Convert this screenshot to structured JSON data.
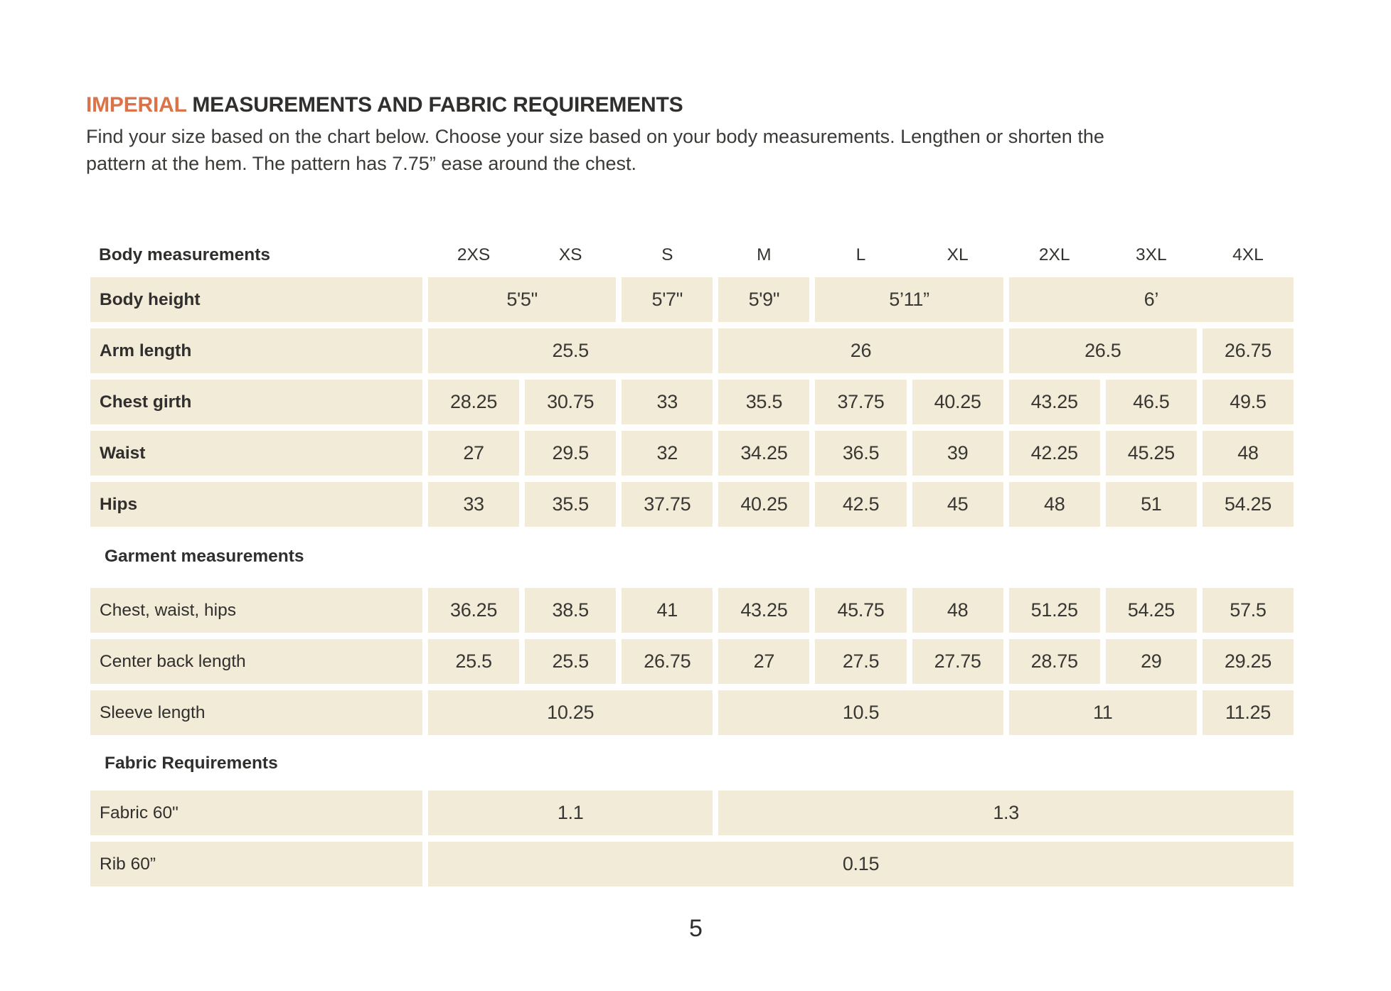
{
  "page": {
    "title_highlight": "IMPERIAL",
    "title_rest": " MEASUREMENTS AND FABRIC REQUIREMENTS",
    "intro_line1": "Find your size based on the chart below. Choose your size based on your body measurements. Lengthen or shorten the",
    "intro_line2": "pattern at the hem. The pattern has 7.75” ease around the chest.",
    "page_number": "5",
    "accent_color": "#DC7348",
    "cell_color": "#F2EBD8"
  },
  "table": {
    "corner_header": "Body measurements",
    "sizes": [
      "2XS",
      "XS",
      "S",
      "M",
      "L",
      "XL",
      "2XL",
      "3XL",
      "4XL"
    ],
    "sections": [
      {
        "heading": null,
        "bold_labels": true,
        "rows": [
          {
            "label": "Body height",
            "cells": [
              [
                "5'5\"",
                2
              ],
              [
                "5'7\"",
                1
              ],
              [
                "5'9\"",
                1
              ],
              [
                "5’11”",
                2
              ],
              [
                "6’",
                3
              ]
            ]
          },
          {
            "label": "Arm length",
            "cells": [
              [
                "25.5",
                3
              ],
              [
                "26",
                3
              ],
              [
                "26.5",
                2
              ],
              [
                "26.75",
                1
              ]
            ]
          },
          {
            "label": "Chest girth",
            "cells": [
              [
                "28.25",
                1
              ],
              [
                "30.75",
                1
              ],
              [
                "33",
                1
              ],
              [
                "35.5",
                1
              ],
              [
                "37.75",
                1
              ],
              [
                "40.25",
                1
              ],
              [
                "43.25",
                1
              ],
              [
                "46.5",
                1
              ],
              [
                "49.5",
                1
              ]
            ]
          },
          {
            "label": "Waist",
            "cells": [
              [
                "27",
                1
              ],
              [
                "29.5",
                1
              ],
              [
                "32",
                1
              ],
              [
                "34.25",
                1
              ],
              [
                "36.5",
                1
              ],
              [
                "39",
                1
              ],
              [
                "42.25",
                1
              ],
              [
                "45.25",
                1
              ],
              [
                "48",
                1
              ]
            ]
          },
          {
            "label": "Hips",
            "cells": [
              [
                "33",
                1
              ],
              [
                "35.5",
                1
              ],
              [
                "37.75",
                1
              ],
              [
                "40.25",
                1
              ],
              [
                "42.5",
                1
              ],
              [
                "45",
                1
              ],
              [
                "48",
                1
              ],
              [
                "51",
                1
              ],
              [
                "54.25",
                1
              ]
            ]
          }
        ]
      },
      {
        "heading": "Garment measurements",
        "bold_labels": false,
        "rows": [
          {
            "label": "Chest, waist, hips",
            "cells": [
              [
                "36.25",
                1
              ],
              [
                "38.5",
                1
              ],
              [
                "41",
                1
              ],
              [
                "43.25",
                1
              ],
              [
                "45.75",
                1
              ],
              [
                "48",
                1
              ],
              [
                "51.25",
                1
              ],
              [
                "54.25",
                1
              ],
              [
                "57.5",
                1
              ]
            ]
          },
          {
            "label": "Center back length",
            "cells": [
              [
                "25.5",
                1
              ],
              [
                "25.5",
                1
              ],
              [
                "26.75",
                1
              ],
              [
                "27",
                1
              ],
              [
                "27.5",
                1
              ],
              [
                "27.75",
                1
              ],
              [
                "28.75",
                1
              ],
              [
                "29",
                1
              ],
              [
                "29.25",
                1
              ]
            ]
          },
          {
            "label": "Sleeve length",
            "cells": [
              [
                "10.25",
                3
              ],
              [
                "10.5",
                3
              ],
              [
                "11",
                2
              ],
              [
                "11.25",
                1
              ]
            ]
          }
        ]
      },
      {
        "heading": "Fabric Requirements",
        "bold_labels": false,
        "rows": [
          {
            "label": "Fabric 60\"",
            "cells": [
              [
                "1.1",
                3
              ],
              [
                "1.3",
                6
              ]
            ]
          },
          {
            "label": "Rib 60”",
            "cells": [
              [
                "0.15",
                9
              ]
            ]
          }
        ]
      }
    ]
  }
}
